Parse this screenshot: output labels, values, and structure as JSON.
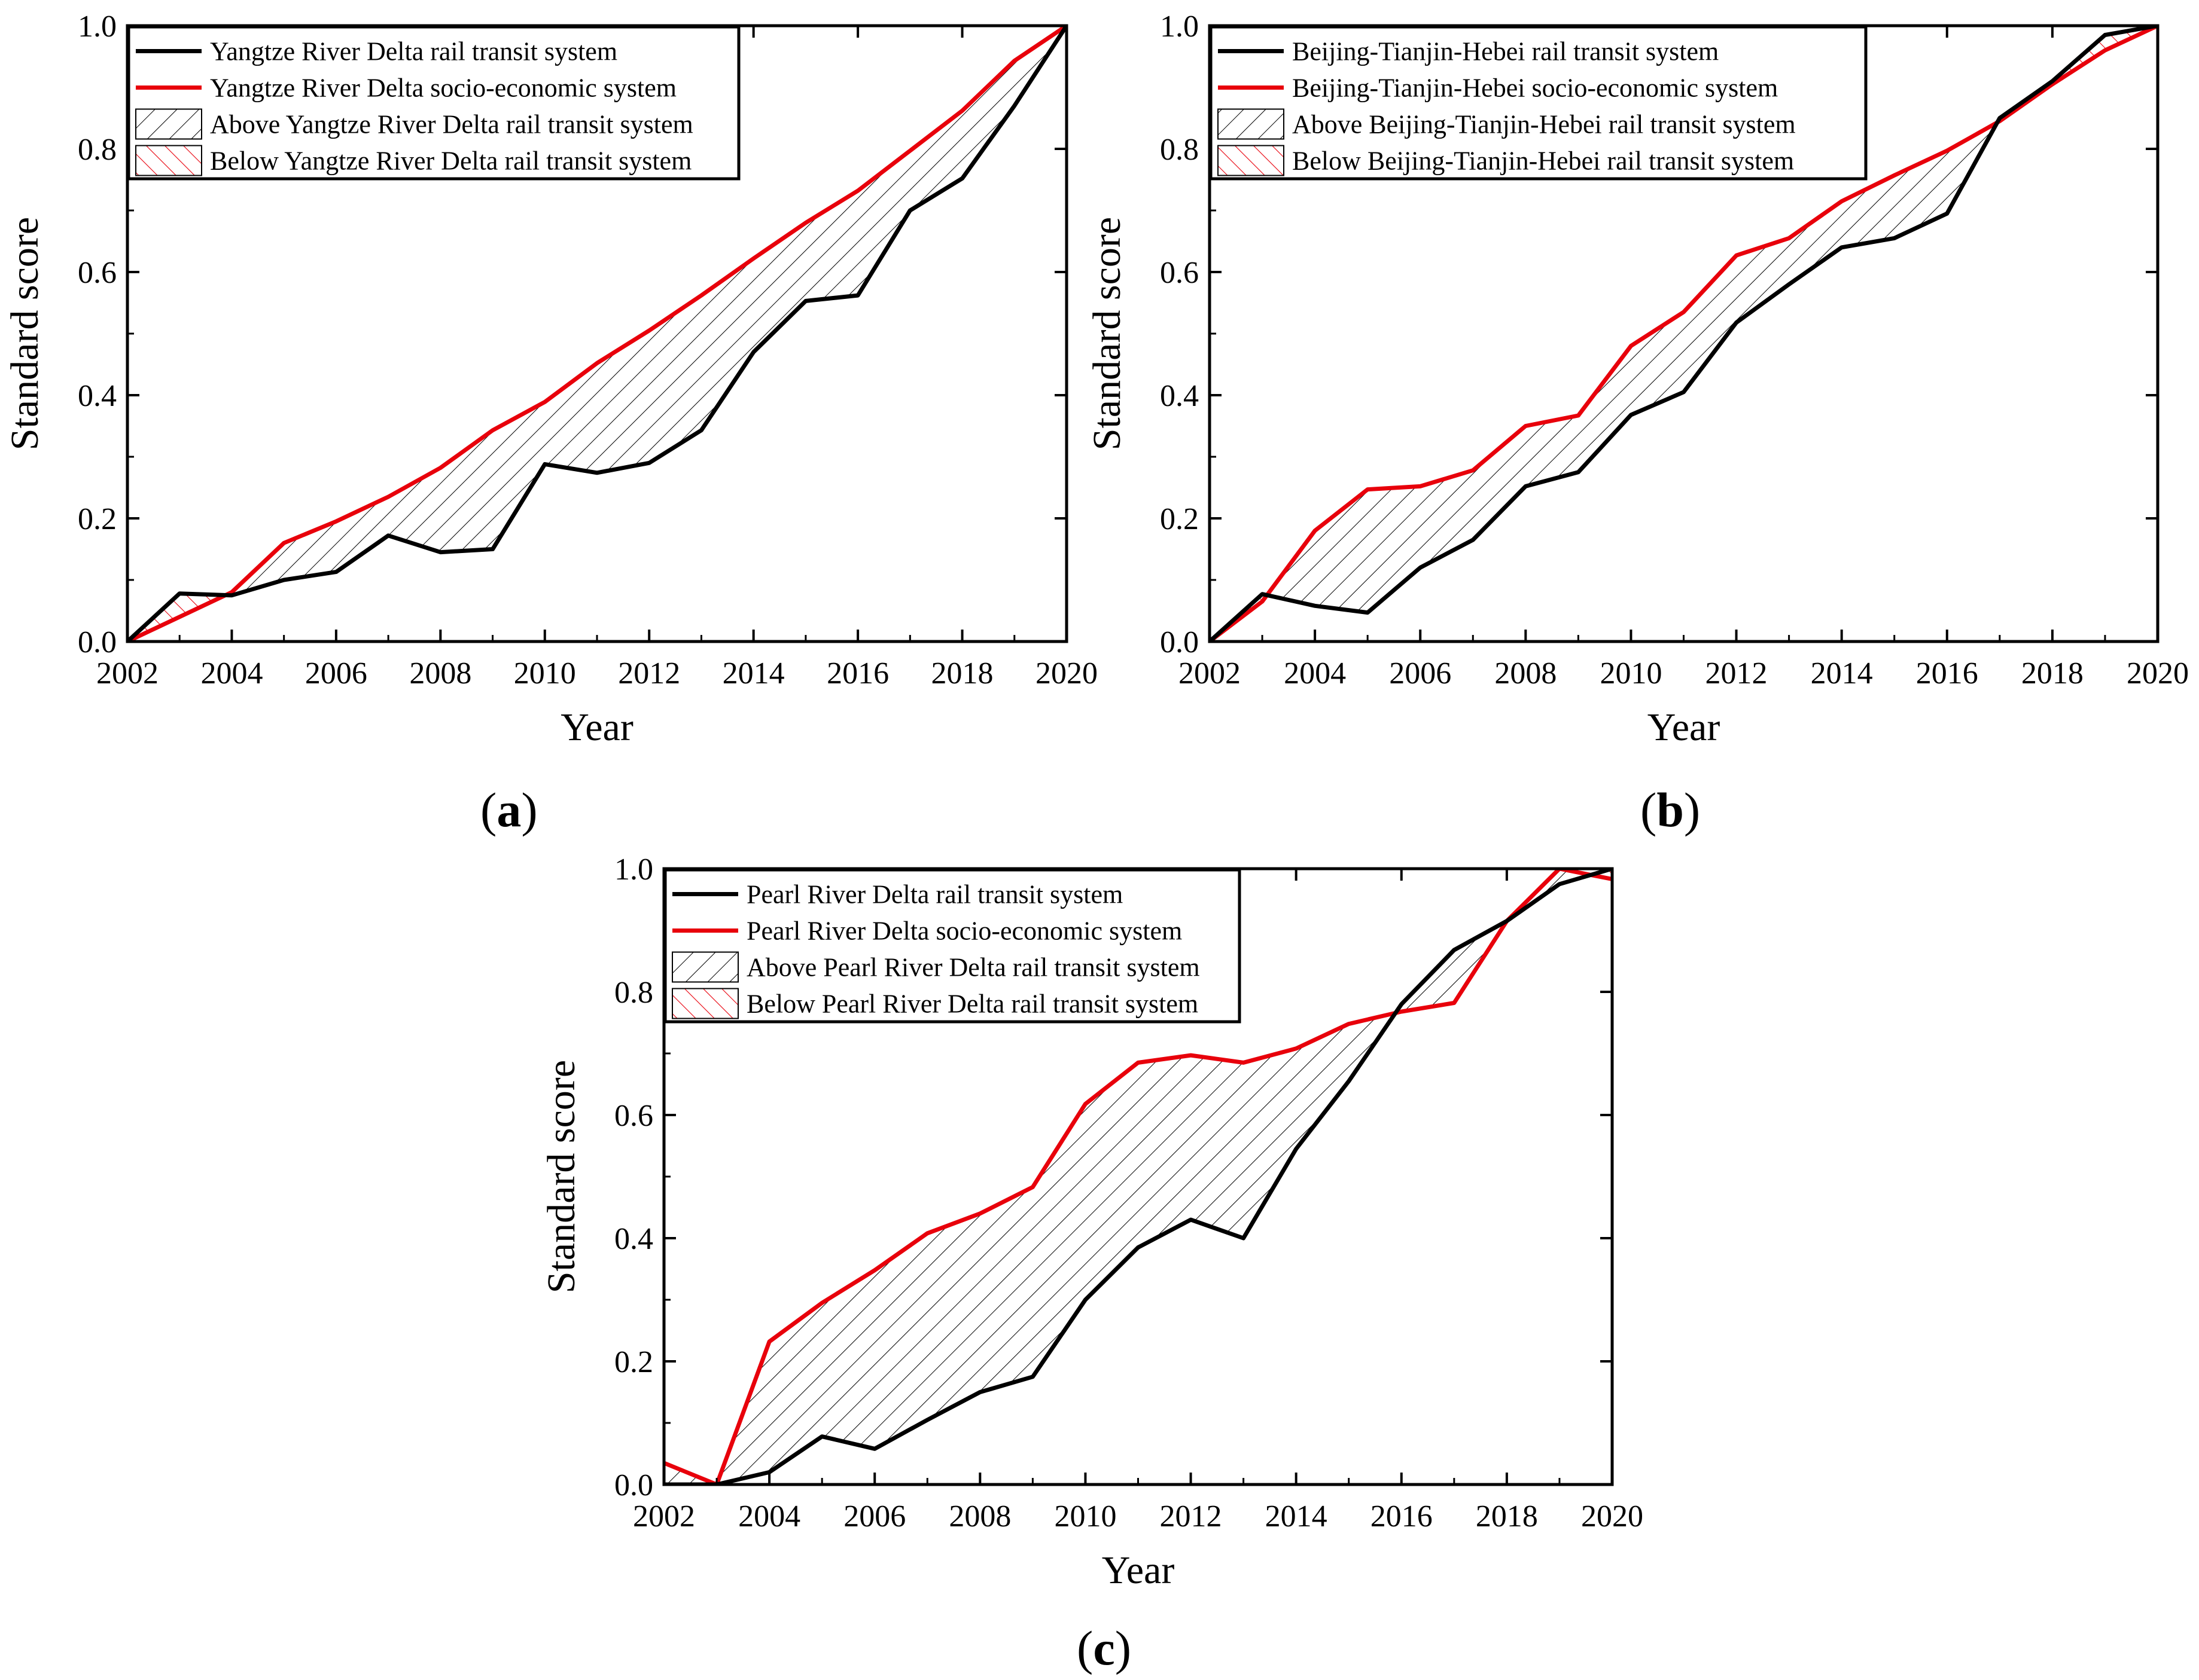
{
  "figure": {
    "panel_labels": [
      {
        "open": "(",
        "letter": "a",
        "close": ")"
      },
      {
        "open": "(",
        "letter": "b",
        "close": ")"
      },
      {
        "open": "(",
        "letter": "c",
        "close": ")"
      }
    ]
  },
  "chart_data": [
    {
      "type": "line",
      "id": "a",
      "xlabel": "Year",
      "ylabel": "Standard score",
      "xlim": [
        2002,
        2020
      ],
      "ylim": [
        0,
        1.0
      ],
      "xticks": [
        "2002",
        "2004",
        "2006",
        "2008",
        "2010",
        "2012",
        "2014",
        "2016",
        "2018",
        "2020"
      ],
      "yticks": [
        "0.0",
        "0.2",
        "0.4",
        "0.6",
        "0.8",
        "1.0"
      ],
      "x": [
        2002,
        2003,
        2004,
        2005,
        2006,
        2007,
        2008,
        2009,
        2010,
        2011,
        2012,
        2013,
        2014,
        2015,
        2016,
        2017,
        2018,
        2019,
        2020
      ],
      "series": [
        {
          "name": "Yangtze River Delta rail transit system",
          "color": "#000000",
          "values": [
            0.0,
            0.078,
            0.075,
            0.1,
            0.113,
            0.172,
            0.145,
            0.15,
            0.288,
            0.274,
            0.29,
            0.343,
            0.47,
            0.553,
            0.562,
            0.7,
            0.752,
            0.87,
            1.0
          ]
        },
        {
          "name": "Yangtze River Delta socio-economic system",
          "color": "#e8000b",
          "values": [
            0.0,
            0.04,
            0.08,
            0.16,
            0.195,
            0.235,
            0.282,
            0.343,
            0.389,
            0.452,
            0.505,
            0.562,
            0.622,
            0.68,
            0.732,
            0.797,
            0.862,
            0.943,
            1.0
          ]
        }
      ],
      "legend": [
        "Yangtze River Delta rail transit system",
        "Yangtze River Delta socio-economic system",
        "Above Yangtze River Delta rail transit system",
        "Below Yangtze River Delta rail transit system"
      ],
      "legend_position": "top-left"
    },
    {
      "type": "line",
      "id": "b",
      "xlabel": "Year",
      "ylabel": "Standard score",
      "xlim": [
        2002,
        2020
      ],
      "ylim": [
        0,
        1.0
      ],
      "xticks": [
        "2002",
        "2004",
        "2006",
        "2008",
        "2010",
        "2012",
        "2014",
        "2016",
        "2018",
        "2020"
      ],
      "yticks": [
        "0.0",
        "0.2",
        "0.4",
        "0.6",
        "0.8",
        "1.0"
      ],
      "x": [
        2002,
        2003,
        2004,
        2005,
        2006,
        2007,
        2008,
        2009,
        2010,
        2011,
        2012,
        2013,
        2014,
        2015,
        2016,
        2017,
        2018,
        2019,
        2020
      ],
      "series": [
        {
          "name": "Beijing-Tianjin-Hebei rail transit system",
          "color": "#000000",
          "values": [
            0.0,
            0.077,
            0.058,
            0.047,
            0.12,
            0.165,
            0.252,
            0.275,
            0.368,
            0.405,
            0.518,
            0.58,
            0.64,
            0.655,
            0.695,
            0.85,
            0.91,
            0.985,
            1.0
          ]
        },
        {
          "name": "Beijing-Tianjin-Hebei socio-economic system",
          "color": "#e8000b",
          "values": [
            0.0,
            0.065,
            0.18,
            0.247,
            0.252,
            0.278,
            0.35,
            0.367,
            0.48,
            0.535,
            0.627,
            0.655,
            0.715,
            0.757,
            0.797,
            0.845,
            0.905,
            0.96,
            1.0
          ]
        }
      ],
      "legend": [
        "Beijing-Tianjin-Hebei rail transit system",
        "Beijing-Tianjin-Hebei socio-economic system",
        "Above Beijing-Tianjin-Hebei rail transit system",
        "Below Beijing-Tianjin-Hebei rail transit system"
      ],
      "legend_position": "top-left"
    },
    {
      "type": "line",
      "id": "c",
      "xlabel": "Year",
      "ylabel": "Standard score",
      "xlim": [
        2002,
        2020
      ],
      "ylim": [
        0,
        1.0
      ],
      "xticks": [
        "2002",
        "2004",
        "2006",
        "2008",
        "2010",
        "2012",
        "2014",
        "2016",
        "2018",
        "2020"
      ],
      "yticks": [
        "0.0",
        "0.2",
        "0.4",
        "0.6",
        "0.8",
        "1.0"
      ],
      "x": [
        2002,
        2003,
        2004,
        2005,
        2006,
        2007,
        2008,
        2009,
        2010,
        2011,
        2012,
        2013,
        2014,
        2015,
        2016,
        2017,
        2018,
        2019,
        2020
      ],
      "series": [
        {
          "name": "Pearl River Delta rail transit system",
          "color": "#000000",
          "values": [
            0.0,
            0.0,
            0.02,
            0.078,
            0.058,
            0.105,
            0.15,
            0.175,
            0.3,
            0.385,
            0.43,
            0.4,
            0.545,
            0.655,
            0.78,
            0.868,
            0.915,
            0.975,
            1.0
          ]
        },
        {
          "name": "Pearl River Delta socio-economic system",
          "color": "#e8000b",
          "values": [
            0.035,
            0.0,
            0.232,
            0.295,
            0.348,
            0.408,
            0.44,
            0.483,
            0.618,
            0.685,
            0.697,
            0.685,
            0.708,
            0.748,
            0.768,
            0.782,
            0.915,
            1.0,
            0.983
          ]
        }
      ],
      "legend": [
        "Pearl River Delta rail transit system",
        "Pearl River Delta socio-economic system",
        "Above Pearl River Delta rail transit system",
        "Below Pearl River Delta rail transit system"
      ],
      "legend_position": "top-left"
    }
  ]
}
